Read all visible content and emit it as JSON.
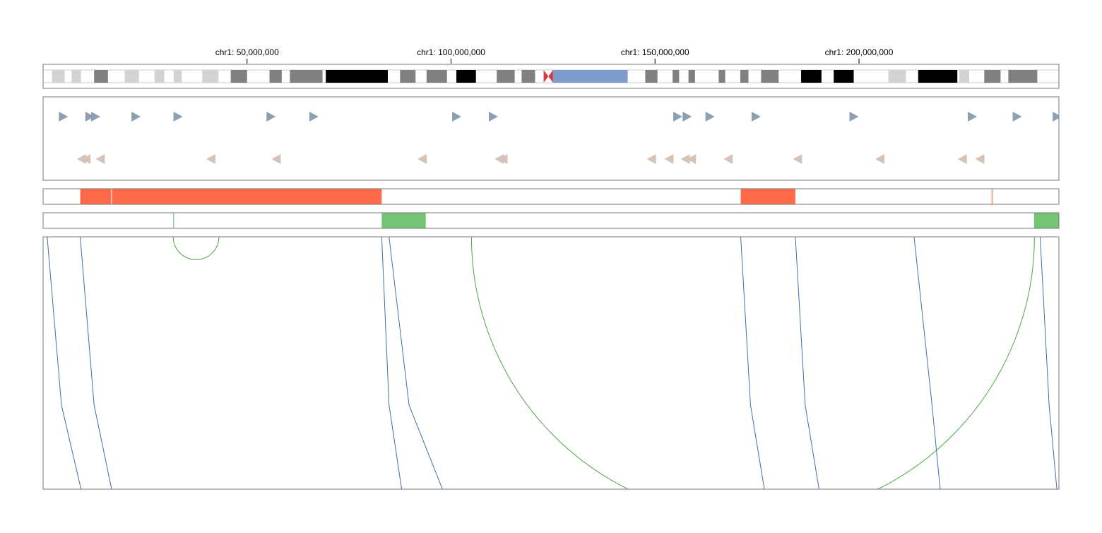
{
  "genome_view": {
    "chromosome": "chr1",
    "axis": {
      "domain_bp": [
        0,
        249000000
      ],
      "ticks": [
        {
          "value": 50000000,
          "label": "chr1: 50,000,000"
        },
        {
          "value": 100000000,
          "label": "chr1: 100,000,000"
        },
        {
          "value": 150000000,
          "label": "chr1: 150,000,000"
        },
        {
          "value": 200000000,
          "label": "chr1: 200,000,000"
        }
      ]
    },
    "ideogram": {
      "colors": {
        "gneg": "#ffffff",
        "gpos25": "#d3d3d3",
        "gpos50": "#808080",
        "gpos100": "#000000",
        "acen": "#d63a3a",
        "gvar": "#7e9ccb"
      },
      "bands": [
        {
          "start": 0,
          "end": 2200000,
          "stain": "gneg"
        },
        {
          "start": 2200000,
          "end": 5300000,
          "stain": "gpos25"
        },
        {
          "start": 5300000,
          "end": 7000000,
          "stain": "gneg"
        },
        {
          "start": 7000000,
          "end": 9300000,
          "stain": "gpos25"
        },
        {
          "start": 9300000,
          "end": 12500000,
          "stain": "gneg"
        },
        {
          "start": 12500000,
          "end": 15900000,
          "stain": "gpos50"
        },
        {
          "start": 15900000,
          "end": 20000000,
          "stain": "gneg"
        },
        {
          "start": 20000000,
          "end": 23500000,
          "stain": "gpos25"
        },
        {
          "start": 23500000,
          "end": 27300000,
          "stain": "gneg"
        },
        {
          "start": 27300000,
          "end": 29700000,
          "stain": "gpos25"
        },
        {
          "start": 29700000,
          "end": 32000000,
          "stain": "gneg"
        },
        {
          "start": 32000000,
          "end": 34000000,
          "stain": "gpos25"
        },
        {
          "start": 34000000,
          "end": 39000000,
          "stain": "gneg"
        },
        {
          "start": 39000000,
          "end": 43000000,
          "stain": "gpos25"
        },
        {
          "start": 43000000,
          "end": 46000000,
          "stain": "gneg"
        },
        {
          "start": 46000000,
          "end": 50000000,
          "stain": "gpos50"
        },
        {
          "start": 50000000,
          "end": 55500000,
          "stain": "gneg"
        },
        {
          "start": 55500000,
          "end": 58500000,
          "stain": "gpos50"
        },
        {
          "start": 58500000,
          "end": 60500000,
          "stain": "gneg"
        },
        {
          "start": 60500000,
          "end": 68500000,
          "stain": "gpos50"
        },
        {
          "start": 68500000,
          "end": 69300000,
          "stain": "gneg"
        },
        {
          "start": 69300000,
          "end": 84500000,
          "stain": "gpos100"
        },
        {
          "start": 84500000,
          "end": 87500000,
          "stain": "gneg"
        },
        {
          "start": 87500000,
          "end": 91300000,
          "stain": "gpos50"
        },
        {
          "start": 91300000,
          "end": 94000000,
          "stain": "gneg"
        },
        {
          "start": 94000000,
          "end": 99000000,
          "stain": "gpos50"
        },
        {
          "start": 99000000,
          "end": 101300000,
          "stain": "gneg"
        },
        {
          "start": 101300000,
          "end": 106100000,
          "stain": "gpos100"
        },
        {
          "start": 106100000,
          "end": 111200000,
          "stain": "gneg"
        },
        {
          "start": 111200000,
          "end": 115600000,
          "stain": "gpos50"
        },
        {
          "start": 115600000,
          "end": 117300000,
          "stain": "gneg"
        },
        {
          "start": 117300000,
          "end": 120600000,
          "stain": "gpos50"
        },
        {
          "start": 120600000,
          "end": 122700000,
          "stain": "gneg"
        },
        {
          "start": 122700000,
          "end": 125000000,
          "stain": "acen"
        },
        {
          "start": 125000000,
          "end": 143300000,
          "stain": "gvar"
        },
        {
          "start": 143300000,
          "end": 147600000,
          "stain": "gneg"
        },
        {
          "start": 147600000,
          "end": 150600000,
          "stain": "gpos50"
        },
        {
          "start": 150600000,
          "end": 154300000,
          "stain": "gneg"
        },
        {
          "start": 154300000,
          "end": 155900000,
          "stain": "gpos50"
        },
        {
          "start": 155900000,
          "end": 158200000,
          "stain": "gneg"
        },
        {
          "start": 158200000,
          "end": 159800000,
          "stain": "gpos50"
        },
        {
          "start": 159800000,
          "end": 165600000,
          "stain": "gneg"
        },
        {
          "start": 165600000,
          "end": 167200000,
          "stain": "gpos50"
        },
        {
          "start": 167200000,
          "end": 170900000,
          "stain": "gneg"
        },
        {
          "start": 170900000,
          "end": 172900000,
          "stain": "gpos50"
        },
        {
          "start": 172900000,
          "end": 176000000,
          "stain": "gneg"
        },
        {
          "start": 176000000,
          "end": 180300000,
          "stain": "gpos50"
        },
        {
          "start": 180300000,
          "end": 185800000,
          "stain": "gneg"
        },
        {
          "start": 185800000,
          "end": 190800000,
          "stain": "gpos100"
        },
        {
          "start": 190800000,
          "end": 193800000,
          "stain": "gneg"
        },
        {
          "start": 193800000,
          "end": 198700000,
          "stain": "gpos100"
        },
        {
          "start": 198700000,
          "end": 207200000,
          "stain": "gneg"
        },
        {
          "start": 207200000,
          "end": 211500000,
          "stain": "gpos25"
        },
        {
          "start": 211500000,
          "end": 214500000,
          "stain": "gneg"
        },
        {
          "start": 214500000,
          "end": 224100000,
          "stain": "gpos100"
        },
        {
          "start": 224100000,
          "end": 224600000,
          "stain": "gneg"
        },
        {
          "start": 224600000,
          "end": 227000000,
          "stain": "gpos25"
        },
        {
          "start": 227000000,
          "end": 230700000,
          "stain": "gneg"
        },
        {
          "start": 230700000,
          "end": 234700000,
          "stain": "gpos50"
        },
        {
          "start": 234700000,
          "end": 236600000,
          "stain": "gneg"
        },
        {
          "start": 236600000,
          "end": 243700000,
          "stain": "gpos50"
        },
        {
          "start": 243700000,
          "end": 249000000,
          "stain": "gneg"
        }
      ]
    },
    "gene_track": {
      "forward_color": "#8da0b3",
      "reverse_color": "#d4c3b6",
      "forward_genes_bp": [
        4900000,
        11400000,
        12800000,
        22700000,
        33000000,
        55800000,
        66300000,
        101300000,
        110300000,
        155500000,
        157800000,
        163400000,
        174700000,
        198700000,
        227700000,
        238700000,
        248500000
      ],
      "reverse_genes_bp": [
        9500000,
        10600000,
        14100000,
        41200000,
        57200000,
        93000000,
        111900000,
        112800000,
        149200000,
        153500000,
        157500000,
        159000000,
        168000000,
        185000000,
        205200000,
        225400000,
        229700000
      ]
    },
    "red_track": {
      "color": "#ff6b4a",
      "segments": [
        {
          "start": 9100000,
          "end": 16700000
        },
        {
          "start": 16900000,
          "end": 83000000
        },
        {
          "start": 171000000,
          "end": 184400000
        },
        {
          "start": 232500000,
          "end": 232700000
        }
      ]
    },
    "green_track": {
      "color": "#74c476",
      "segments": [
        {
          "start": 31900000,
          "end": 32100000
        },
        {
          "start": 83000000,
          "end": 93800000
        },
        {
          "start": 242900000,
          "end": 249000000
        }
      ]
    },
    "link_track": {
      "blue_links": [
        {
          "top": 1000000,
          "mid": 4500000,
          "bottom": 9300000
        },
        {
          "top": 9100000,
          "mid": 12500000,
          "bottom": 16800000
        },
        {
          "top": 83000000,
          "mid": 84800000,
          "bottom": 87900000
        },
        {
          "top": 84800000,
          "mid": 89700000,
          "bottom": 97900000
        },
        {
          "top": 171000000,
          "mid": 173400000,
          "bottom": 176800000
        },
        {
          "top": 184400000,
          "mid": 186800000,
          "bottom": 190200000
        },
        {
          "top": 213500000,
          "mid": 217900000,
          "bottom": 219900000
        },
        {
          "top": 244400000,
          "mid": 246600000,
          "bottom": 248500000
        }
      ],
      "green_arcs": [
        {
          "start": 31900000,
          "end": 43100000
        },
        {
          "start": 105000000,
          "end": 243000000
        }
      ],
      "colors": {
        "blue": "#3d6fae",
        "green": "#4ea543"
      }
    }
  }
}
